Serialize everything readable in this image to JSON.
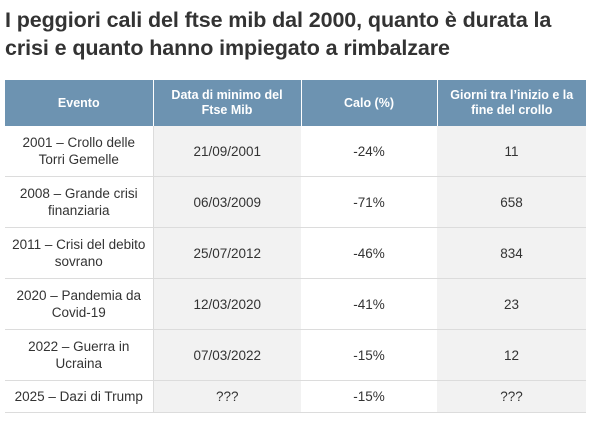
{
  "title": "I peggiori cali del ftse mib dal 2000, quanto è durata la crisi e quanto hanno impiegato a rimbalzare",
  "colors": {
    "header_bg": "#6d93b1",
    "header_text": "#ffffff",
    "shaded_cell": "#f2f2f2",
    "text": "#333333"
  },
  "chart_data": {
    "type": "table",
    "title": "I peggiori cali del ftse mib dal 2000, quanto è durata la crisi e quanto hanno impiegato a rimbalzare",
    "columns": [
      "Evento",
      "Data di minimo del Ftse Mib",
      "Calo (%)",
      "Giorni tra l’inizio e la fine del crollo"
    ],
    "rows": [
      [
        "2001 – Crollo delle Torri Gemelle",
        "21/09/2001",
        "-24%",
        "11"
      ],
      [
        "2008 – Grande crisi finanziaria",
        "06/03/2009",
        "-71%",
        "658"
      ],
      [
        "2011 – Crisi del debito sovrano",
        "25/07/2012",
        "-46%",
        "834"
      ],
      [
        "2020 – Pandemia da Covid-19",
        "12/03/2020",
        "-41%",
        "23"
      ],
      [
        "2022 – Guerra in Ucraina",
        "07/03/2022",
        "-15%",
        "12"
      ],
      [
        "2025 – Dazi di Trump",
        "???",
        "-15%",
        "???"
      ]
    ]
  }
}
